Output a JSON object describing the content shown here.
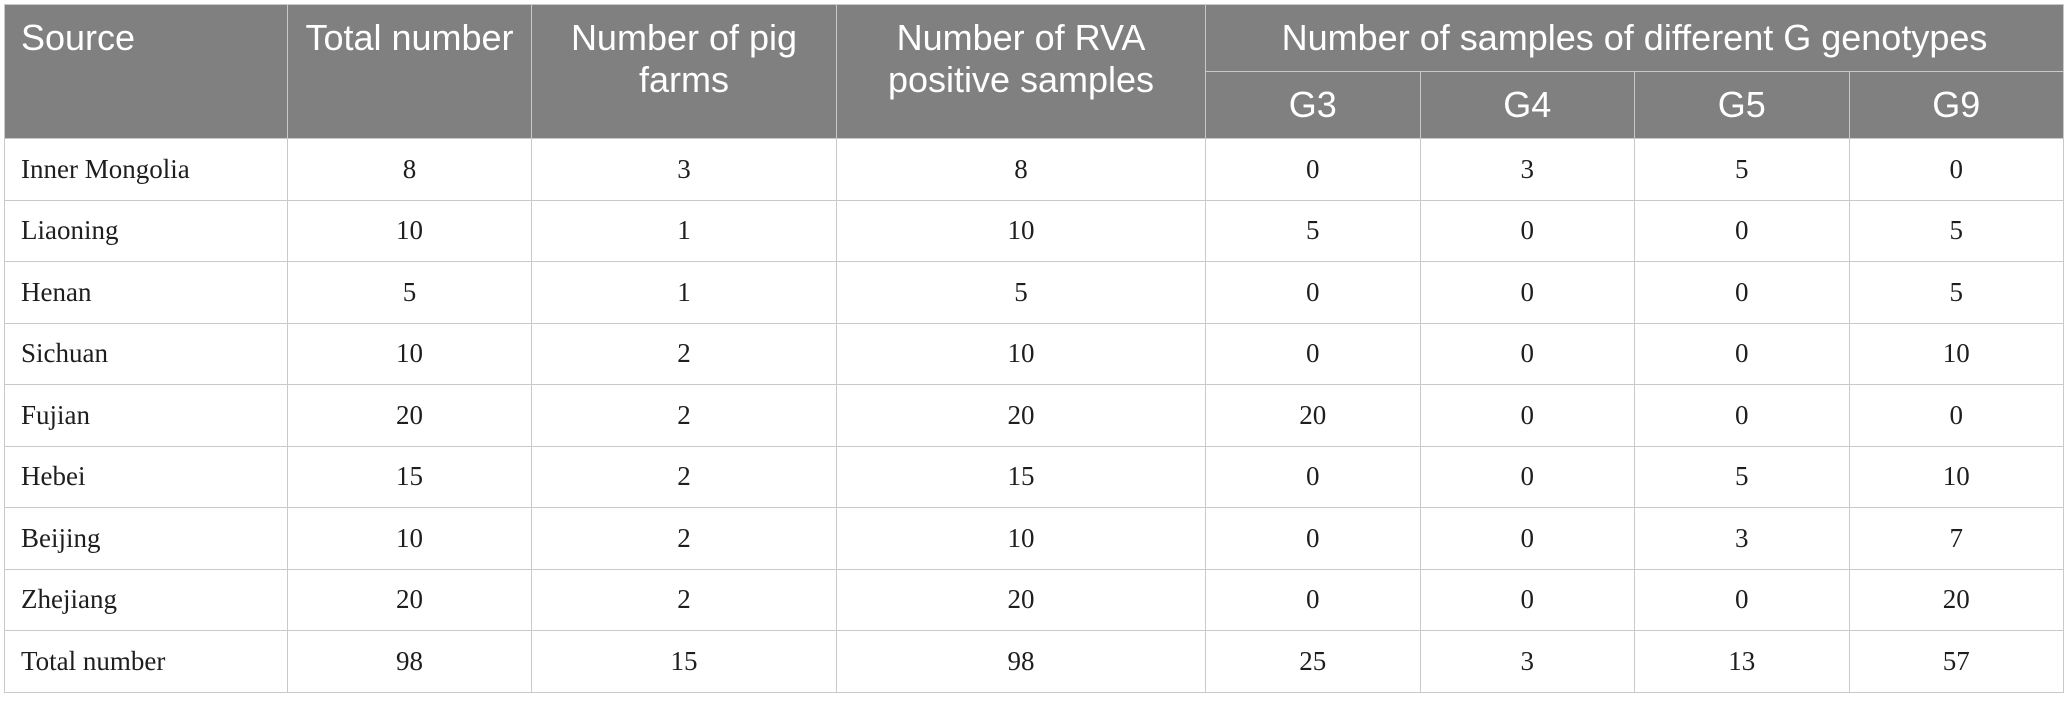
{
  "table": {
    "headers": {
      "source": "Source",
      "total_number": "Total number",
      "pig_farms": "Number of pig farms",
      "rva_positive": "Number of RVA positive samples",
      "genotype_group": "Number of samples of different G genotypes",
      "genotypes": [
        "G3",
        "G4",
        "G5",
        "G9"
      ]
    },
    "rows": [
      {
        "source": "Inner Mongolia",
        "total": "8",
        "farms": "3",
        "rva": "8",
        "g3": "0",
        "g4": "3",
        "g5": "5",
        "g9": "0"
      },
      {
        "source": "Liaoning",
        "total": "10",
        "farms": "1",
        "rva": "10",
        "g3": "5",
        "g4": "0",
        "g5": "0",
        "g9": "5"
      },
      {
        "source": "Henan",
        "total": "5",
        "farms": "1",
        "rva": "5",
        "g3": "0",
        "g4": "0",
        "g5": "0",
        "g9": "5"
      },
      {
        "source": "Sichuan",
        "total": "10",
        "farms": "2",
        "rva": "10",
        "g3": "0",
        "g4": "0",
        "g5": "0",
        "g9": "10"
      },
      {
        "source": "Fujian",
        "total": "20",
        "farms": "2",
        "rva": "20",
        "g3": "20",
        "g4": "0",
        "g5": "0",
        "g9": "0"
      },
      {
        "source": "Hebei",
        "total": "15",
        "farms": "2",
        "rva": "15",
        "g3": "0",
        "g4": "0",
        "g5": "5",
        "g9": "10"
      },
      {
        "source": "Beijing",
        "total": "10",
        "farms": "2",
        "rva": "10",
        "g3": "0",
        "g4": "0",
        "g5": "3",
        "g9": "7"
      },
      {
        "source": "Zhejiang",
        "total": "20",
        "farms": "2",
        "rva": "20",
        "g3": "0",
        "g4": "0",
        "g5": "0",
        "g9": "20"
      },
      {
        "source": "Total number",
        "total": "98",
        "farms": "15",
        "rva": "98",
        "g3": "25",
        "g4": "3",
        "g5": "13",
        "g9": "57"
      }
    ]
  },
  "colors": {
    "header_background": "#7f807f",
    "header_text": "#ffffff",
    "grid_lines": "#c9c9c9",
    "body_text": "#1e1e1e"
  }
}
